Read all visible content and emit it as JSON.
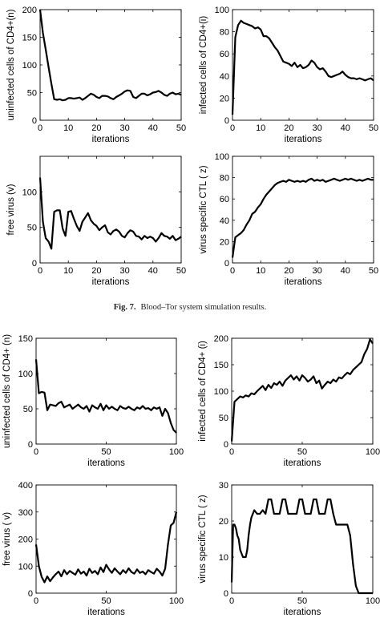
{
  "figure_caption": {
    "label": "Fig. 7.",
    "text": "Blood–Tor system simulation results."
  },
  "chart_data": [
    {
      "id": "f7n",
      "type": "line",
      "xlabel": "iterations",
      "ylabel": "uninfected cells of  CD4+(n)",
      "xlim": [
        0,
        50
      ],
      "ylim": [
        0,
        200
      ],
      "xticks": [
        0,
        10,
        20,
        30,
        40,
        50
      ],
      "yticks": [
        0,
        50,
        100,
        150,
        200
      ],
      "x": [
        0,
        1,
        2,
        3,
        4,
        5,
        6,
        7,
        8,
        9,
        10,
        11,
        12,
        13,
        14,
        15,
        16,
        17,
        18,
        19,
        20,
        21,
        22,
        23,
        24,
        25,
        26,
        27,
        28,
        29,
        30,
        31,
        32,
        33,
        34,
        35,
        36,
        37,
        38,
        39,
        40,
        41,
        42,
        43,
        44,
        45,
        46,
        47,
        48,
        49,
        50
      ],
      "y": [
        200,
        158,
        128,
        96,
        66,
        38,
        37,
        38,
        36,
        37,
        40,
        40,
        39,
        40,
        41,
        37,
        40,
        44,
        48,
        46,
        42,
        40,
        44,
        44,
        43,
        40,
        38,
        42,
        45,
        48,
        52,
        54,
        53,
        42,
        40,
        44,
        48,
        48,
        45,
        47,
        50,
        51,
        53,
        50,
        46,
        44,
        48,
        50,
        47,
        48,
        46
      ]
    },
    {
      "id": "f7i",
      "type": "line",
      "xlabel": "iterations",
      "ylabel": "infected cells of  CD4+(i)",
      "xlim": [
        0,
        50
      ],
      "ylim": [
        0,
        100
      ],
      "xticks": [
        0,
        10,
        20,
        30,
        40,
        50
      ],
      "yticks": [
        0,
        20,
        40,
        60,
        80,
        100
      ],
      "x": [
        0,
        1,
        2,
        3,
        4,
        5,
        6,
        7,
        8,
        9,
        10,
        11,
        12,
        13,
        14,
        15,
        16,
        17,
        18,
        19,
        20,
        21,
        22,
        23,
        24,
        25,
        26,
        27,
        28,
        29,
        30,
        31,
        32,
        33,
        34,
        35,
        36,
        37,
        38,
        39,
        40,
        41,
        42,
        43,
        44,
        45,
        46,
        47,
        48,
        49,
        50
      ],
      "y": [
        5,
        75,
        86,
        90,
        88,
        87,
        86,
        85,
        83,
        84,
        82,
        76,
        76,
        74,
        70,
        66,
        63,
        58,
        53,
        52,
        51,
        49,
        52,
        48,
        50,
        47,
        48,
        50,
        54,
        52,
        48,
        46,
        47,
        44,
        40,
        39,
        40,
        41,
        42,
        44,
        41,
        39,
        38,
        38,
        37,
        38,
        37,
        36,
        37,
        38,
        36
      ]
    },
    {
      "id": "f7v",
      "type": "line",
      "xlabel": "iterations",
      "ylabel": "free virus (v)",
      "xlim": [
        0,
        50
      ],
      "ylim": [
        0,
        150
      ],
      "xticks": [
        0,
        10,
        20,
        30,
        40,
        50
      ],
      "yticks": [
        0,
        50,
        100
      ],
      "x": [
        0,
        1,
        2,
        3,
        4,
        5,
        6,
        7,
        8,
        9,
        10,
        11,
        12,
        13,
        14,
        15,
        16,
        17,
        18,
        19,
        20,
        21,
        22,
        23,
        24,
        25,
        26,
        27,
        28,
        29,
        30,
        31,
        32,
        33,
        34,
        35,
        36,
        37,
        38,
        39,
        40,
        41,
        42,
        43,
        44,
        45,
        46,
        47,
        48,
        49,
        50
      ],
      "y": [
        120,
        58,
        35,
        30,
        20,
        72,
        74,
        74,
        48,
        38,
        72,
        73,
        62,
        52,
        45,
        58,
        64,
        70,
        60,
        55,
        52,
        46,
        50,
        53,
        43,
        40,
        45,
        47,
        44,
        38,
        36,
        42,
        46,
        44,
        38,
        37,
        33,
        38,
        35,
        37,
        35,
        30,
        35,
        42,
        38,
        37,
        34,
        38,
        32,
        34,
        37
      ]
    },
    {
      "id": "f7z",
      "type": "line",
      "xlabel": "iterations",
      "ylabel": "virus specific CTL ( z)",
      "xlim": [
        0,
        50
      ],
      "ylim": [
        0,
        100
      ],
      "xticks": [
        0,
        10,
        20,
        30,
        40,
        50
      ],
      "yticks": [
        0,
        20,
        40,
        60,
        80,
        100
      ],
      "x": [
        0,
        1,
        2,
        3,
        4,
        5,
        6,
        7,
        8,
        9,
        10,
        11,
        12,
        13,
        14,
        15,
        16,
        17,
        18,
        19,
        20,
        21,
        22,
        23,
        24,
        25,
        26,
        27,
        28,
        29,
        30,
        31,
        32,
        33,
        34,
        35,
        36,
        37,
        38,
        39,
        40,
        41,
        42,
        43,
        44,
        45,
        46,
        47,
        48,
        49,
        50
      ],
      "y": [
        5,
        24,
        26,
        28,
        31,
        36,
        40,
        46,
        48,
        52,
        55,
        60,
        64,
        67,
        70,
        73,
        75,
        76,
        77,
        76,
        78,
        77,
        76,
        77,
        76,
        77,
        76,
        78,
        79,
        77,
        78,
        77,
        78,
        76,
        77,
        78,
        79,
        78,
        77,
        78,
        79,
        78,
        79,
        78,
        77,
        78,
        77,
        78,
        79,
        78,
        78
      ]
    },
    {
      "id": "f8n",
      "type": "line",
      "xlabel": "iterations",
      "ylabel": "uninfected cells of  CD4+ (n)",
      "xlim": [
        0,
        100
      ],
      "ylim": [
        0,
        150
      ],
      "xticks": [
        0,
        50,
        100
      ],
      "yticks": [
        0,
        50,
        100,
        150
      ],
      "x": [
        0,
        2,
        4,
        6,
        8,
        10,
        12,
        14,
        16,
        18,
        20,
        22,
        24,
        26,
        28,
        30,
        32,
        34,
        36,
        38,
        40,
        42,
        44,
        46,
        48,
        50,
        52,
        54,
        56,
        58,
        60,
        62,
        64,
        66,
        68,
        70,
        72,
        74,
        76,
        78,
        80,
        82,
        84,
        86,
        88,
        90,
        92,
        94,
        96,
        98,
        100
      ],
      "y": [
        120,
        72,
        74,
        73,
        48,
        56,
        55,
        54,
        58,
        60,
        52,
        54,
        56,
        50,
        53,
        56,
        52,
        50,
        54,
        46,
        55,
        52,
        50,
        57,
        48,
        55,
        50,
        53,
        50,
        48,
        54,
        51,
        50,
        53,
        50,
        48,
        52,
        50,
        54,
        50,
        51,
        48,
        52,
        50,
        52,
        40,
        50,
        44,
        30,
        20,
        16
      ]
    },
    {
      "id": "f8i",
      "type": "line",
      "xlabel": "iterations",
      "ylabel": "infected cells of  CD4+ (i)",
      "xlim": [
        0,
        100
      ],
      "ylim": [
        0,
        200
      ],
      "xticks": [
        0,
        50,
        100
      ],
      "yticks": [
        0,
        50,
        100,
        150,
        200
      ],
      "x": [
        0,
        2,
        4,
        6,
        8,
        10,
        12,
        14,
        16,
        18,
        20,
        22,
        24,
        26,
        28,
        30,
        32,
        34,
        36,
        38,
        40,
        42,
        44,
        46,
        48,
        50,
        52,
        54,
        56,
        58,
        60,
        62,
        64,
        66,
        68,
        70,
        72,
        74,
        76,
        78,
        80,
        82,
        84,
        86,
        88,
        90,
        92,
        94,
        96,
        98,
        100
      ],
      "y": [
        5,
        80,
        85,
        90,
        88,
        92,
        90,
        96,
        94,
        100,
        105,
        110,
        102,
        112,
        106,
        115,
        112,
        118,
        110,
        120,
        125,
        130,
        122,
        128,
        120,
        130,
        125,
        118,
        122,
        128,
        115,
        120,
        105,
        112,
        118,
        115,
        122,
        118,
        126,
        124,
        130,
        135,
        132,
        140,
        145,
        150,
        155,
        170,
        180,
        198,
        190
      ]
    },
    {
      "id": "f8v",
      "type": "line",
      "xlabel": "iterations",
      "ylabel": "free virus ( v)",
      "xlim": [
        0,
        100
      ],
      "ylim": [
        0,
        400
      ],
      "xticks": [
        0,
        50,
        100
      ],
      "yticks": [
        0,
        100,
        200,
        300,
        400
      ],
      "x": [
        0,
        2,
        4,
        6,
        8,
        10,
        12,
        14,
        16,
        18,
        20,
        22,
        24,
        26,
        28,
        30,
        32,
        34,
        36,
        38,
        40,
        42,
        44,
        46,
        48,
        50,
        52,
        54,
        56,
        58,
        60,
        62,
        64,
        66,
        68,
        70,
        72,
        74,
        76,
        78,
        80,
        82,
        84,
        86,
        88,
        90,
        92,
        94,
        96,
        98,
        100
      ],
      "y": [
        180,
        100,
        60,
        40,
        62,
        44,
        58,
        70,
        80,
        62,
        85,
        70,
        82,
        75,
        68,
        88,
        72,
        80,
        65,
        90,
        75,
        82,
        70,
        95,
        78,
        105,
        88,
        75,
        92,
        80,
        70,
        85,
        75,
        92,
        78,
        72,
        88,
        75,
        80,
        70,
        85,
        78,
        72,
        90,
        80,
        65,
        90,
        180,
        250,
        260,
        300
      ]
    },
    {
      "id": "f8z",
      "type": "line",
      "xlabel": "iterations",
      "ylabel": "virus specific CTL ( z)",
      "xlim": [
        0,
        100
      ],
      "ylim": [
        0,
        30
      ],
      "xticks": [
        0,
        50,
        100
      ],
      "yticks": [
        0,
        10,
        20,
        30
      ],
      "x": [
        0,
        1,
        2,
        3,
        4,
        5,
        6,
        7,
        8,
        9,
        10,
        11,
        12,
        13,
        14,
        15,
        16,
        18,
        20,
        22,
        24,
        26,
        28,
        30,
        32,
        34,
        36,
        38,
        40,
        42,
        44,
        46,
        48,
        50,
        52,
        54,
        56,
        58,
        60,
        62,
        64,
        66,
        68,
        70,
        72,
        74,
        76,
        78,
        80,
        82,
        84,
        86,
        88,
        90,
        92,
        94,
        96,
        98,
        100
      ],
      "y": [
        3,
        19,
        19,
        18,
        16,
        15,
        12,
        11,
        10,
        10,
        10,
        12,
        16,
        19,
        21,
        22,
        23,
        22,
        22,
        23,
        22,
        26,
        26,
        22,
        22,
        22,
        26,
        26,
        22,
        22,
        22,
        22,
        26,
        26,
        22,
        22,
        22,
        26,
        26,
        22,
        22,
        22,
        26,
        26,
        22,
        19,
        19,
        19,
        19,
        19,
        16,
        8,
        2,
        0,
        0,
        0,
        0,
        0,
        0
      ]
    }
  ]
}
